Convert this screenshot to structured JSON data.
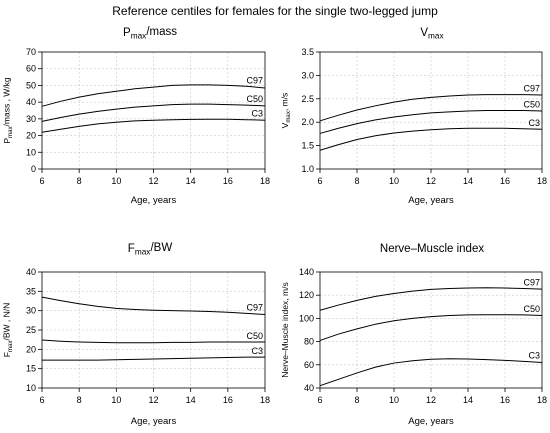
{
  "title": "Reference centiles for females for the single two-legged jump",
  "chart_data": [
    {
      "type": "line",
      "title_base": "P",
      "title_sub": "max",
      "title_rest": "/mass",
      "ylabel_base": "P",
      "ylabel_sub": "max",
      "ylabel_rest": "/mass , W/kg",
      "xlabel": "Age, years",
      "xlim": [
        6,
        18
      ],
      "ylim": [
        0,
        70
      ],
      "xticks": [
        6,
        8,
        10,
        12,
        14,
        16,
        18
      ],
      "yticks": [
        0,
        10,
        20,
        30,
        40,
        50,
        60,
        70
      ],
      "ytick_labels": [
        "0",
        "10",
        "20",
        "30",
        "40",
        "50",
        "60",
        "70"
      ],
      "x": [
        6,
        7,
        8,
        9,
        10,
        11,
        12,
        13,
        14,
        15,
        16,
        17,
        18
      ],
      "series": [
        {
          "name": "C97",
          "values": [
            37.5,
            40.5,
            43,
            45,
            46.5,
            48,
            49,
            50,
            50.3,
            50.3,
            50,
            49.5,
            48.5
          ]
        },
        {
          "name": "C50",
          "values": [
            28.5,
            30.8,
            32.8,
            34.5,
            35.8,
            37,
            37.8,
            38.5,
            38.8,
            38.8,
            38.5,
            38.2,
            37.8
          ]
        },
        {
          "name": "C3",
          "values": [
            22,
            23.8,
            25.5,
            27,
            28,
            28.8,
            29.2,
            29.5,
            29.7,
            29.8,
            29.8,
            29.5,
            29.2
          ]
        }
      ]
    },
    {
      "type": "line",
      "title_base": "V",
      "title_sub": "max",
      "title_rest": "",
      "ylabel_base": "V",
      "ylabel_sub": "max",
      "ylabel_rest": ", m/s",
      "xlabel": "Age, years",
      "xlim": [
        6,
        18
      ],
      "ylim": [
        1.0,
        3.5
      ],
      "xticks": [
        6,
        8,
        10,
        12,
        14,
        16,
        18
      ],
      "yticks": [
        1.0,
        1.5,
        2.0,
        2.5,
        3.0,
        3.5
      ],
      "ytick_labels": [
        "1.0",
        "1.5",
        "2.0",
        "2.5",
        "3.0",
        "3.5"
      ],
      "x": [
        6,
        7,
        8,
        9,
        10,
        11,
        12,
        13,
        14,
        15,
        16,
        17,
        18
      ],
      "series": [
        {
          "name": "C97",
          "values": [
            2.03,
            2.15,
            2.26,
            2.35,
            2.43,
            2.49,
            2.53,
            2.56,
            2.58,
            2.59,
            2.59,
            2.59,
            2.58
          ]
        },
        {
          "name": "C50",
          "values": [
            1.76,
            1.87,
            1.97,
            2.05,
            2.11,
            2.16,
            2.2,
            2.22,
            2.24,
            2.25,
            2.25,
            2.25,
            2.24
          ]
        },
        {
          "name": "C3",
          "values": [
            1.4,
            1.52,
            1.63,
            1.71,
            1.77,
            1.81,
            1.84,
            1.86,
            1.87,
            1.87,
            1.87,
            1.86,
            1.85
          ]
        }
      ]
    },
    {
      "type": "line",
      "title_base": "F",
      "title_sub": "max",
      "title_rest": "/BW",
      "ylabel_base": "F",
      "ylabel_sub": "max",
      "ylabel_rest": "/BW , N/N",
      "xlabel": "Age, years",
      "xlim": [
        6,
        18
      ],
      "ylim": [
        10,
        40
      ],
      "xticks": [
        6,
        8,
        10,
        12,
        14,
        16,
        18
      ],
      "yticks": [
        10,
        15,
        20,
        25,
        30,
        35,
        40
      ],
      "ytick_labels": [
        "10",
        "15",
        "20",
        "25",
        "30",
        "35",
        "40"
      ],
      "x": [
        6,
        7,
        8,
        9,
        10,
        11,
        12,
        13,
        14,
        15,
        16,
        17,
        18
      ],
      "series": [
        {
          "name": "C97",
          "values": [
            33.5,
            32.6,
            31.8,
            31.1,
            30.6,
            30.3,
            30.1,
            30.0,
            29.9,
            29.8,
            29.6,
            29.3,
            29.0
          ]
        },
        {
          "name": "C50",
          "values": [
            22.4,
            22.1,
            21.9,
            21.8,
            21.7,
            21.7,
            21.7,
            21.8,
            21.8,
            21.9,
            21.9,
            21.9,
            21.9
          ]
        },
        {
          "name": "C3",
          "values": [
            17.2,
            17.2,
            17.2,
            17.2,
            17.3,
            17.4,
            17.5,
            17.6,
            17.7,
            17.8,
            17.9,
            18.0,
            18.0
          ]
        }
      ]
    },
    {
      "type": "line",
      "title_base": "Nerve–Muscle index",
      "title_sub": "",
      "title_rest": "",
      "ylabel_base": "Nerve–Muscle index, m/s",
      "ylabel_sub": "",
      "ylabel_rest": "",
      "xlabel": "Age, years",
      "xlim": [
        6,
        18
      ],
      "ylim": [
        40,
        140
      ],
      "xticks": [
        6,
        8,
        10,
        12,
        14,
        16,
        18
      ],
      "yticks": [
        40,
        60,
        80,
        100,
        120,
        140
      ],
      "ytick_labels": [
        "40",
        "60",
        "80",
        "100",
        "120",
        "140"
      ],
      "x": [
        6,
        7,
        8,
        9,
        10,
        11,
        12,
        13,
        14,
        15,
        16,
        17,
        18
      ],
      "series": [
        {
          "name": "C97",
          "values": [
            107,
            111.5,
            115.5,
            119,
            121.5,
            123.5,
            125,
            125.8,
            126.2,
            126.4,
            126.2,
            125.8,
            125.2
          ]
        },
        {
          "name": "C50",
          "values": [
            81,
            86.5,
            91,
            95,
            98,
            100,
            101.5,
            102.5,
            103,
            103.2,
            103.2,
            103,
            102.5
          ]
        },
        {
          "name": "C3",
          "values": [
            42,
            47.5,
            53,
            58,
            61.5,
            63.5,
            64.8,
            65.2,
            65,
            64.5,
            63.8,
            63,
            62
          ]
        }
      ]
    }
  ]
}
